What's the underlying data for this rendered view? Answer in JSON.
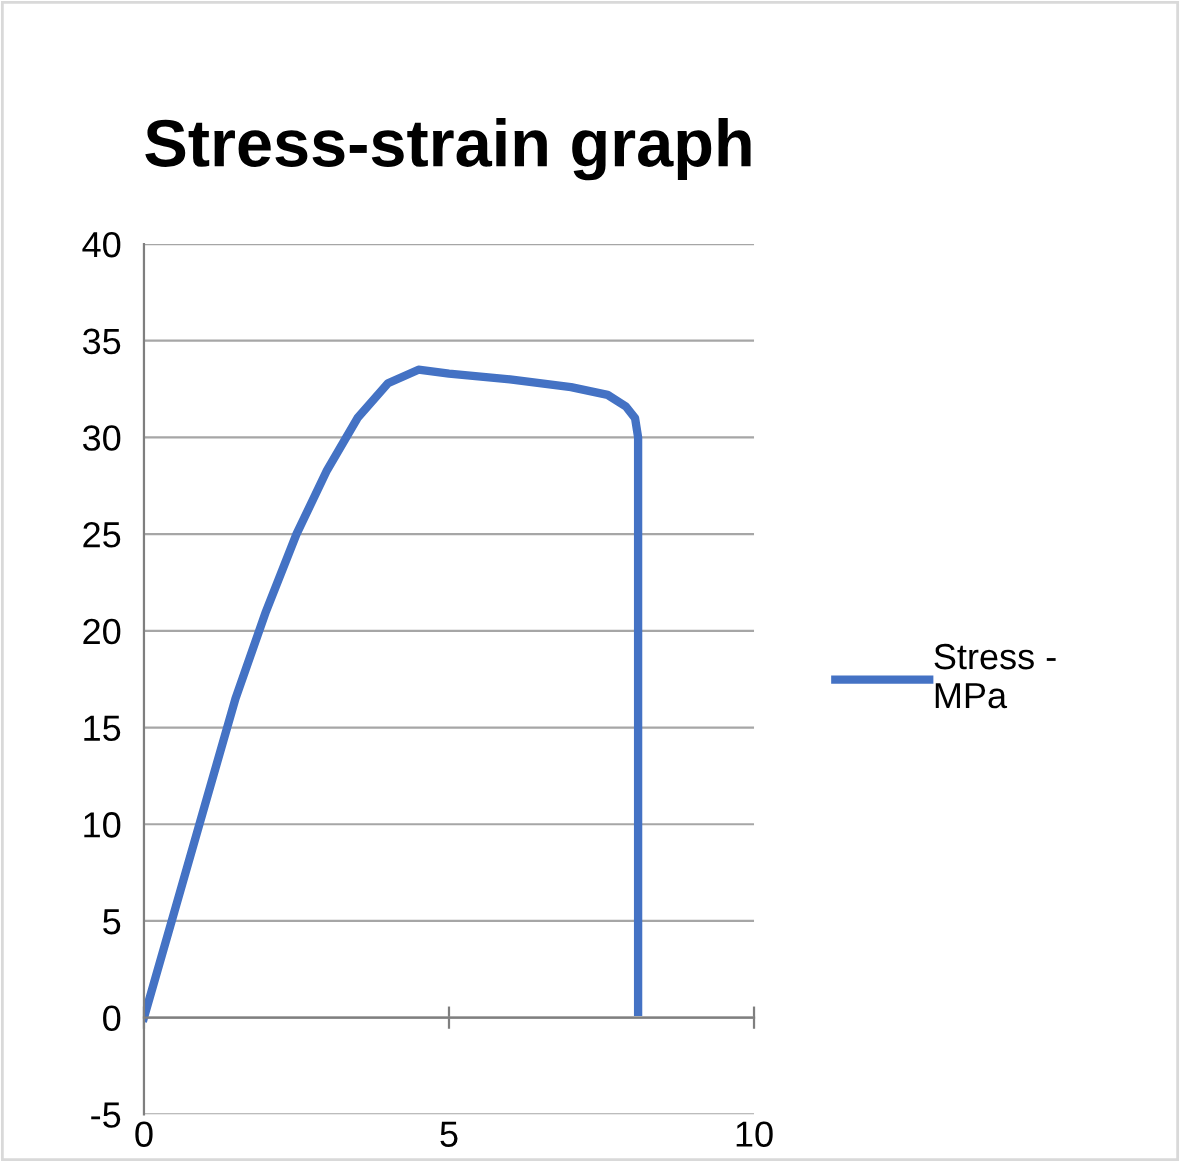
{
  "chart_data": {
    "type": "line",
    "title": "Stress-strain graph",
    "series": [
      {
        "name": "Stress -\nMPa",
        "color": "#4472c4",
        "x": [
          0,
          0.5,
          1,
          1.5,
          2,
          2.5,
          3,
          3.5,
          4,
          4.5,
          5,
          6,
          7,
          7.6,
          7.9,
          8.05,
          8.1,
          8.1
        ],
        "values": [
          0,
          5.5,
          11,
          16.5,
          21,
          25,
          28.3,
          31,
          32.8,
          33.5,
          33.3,
          33,
          32.6,
          32.2,
          31.6,
          31,
          30,
          0.3
        ]
      }
    ],
    "xlim": [
      0,
      10
    ],
    "xticks": [
      0,
      5,
      10
    ],
    "ylim": [
      -5,
      40
    ],
    "yticks": [
      -5,
      0,
      5,
      10,
      15,
      20,
      25,
      30,
      35,
      40
    ],
    "grid": "y",
    "legend": "right",
    "marker": "none",
    "line_style": "solid"
  }
}
